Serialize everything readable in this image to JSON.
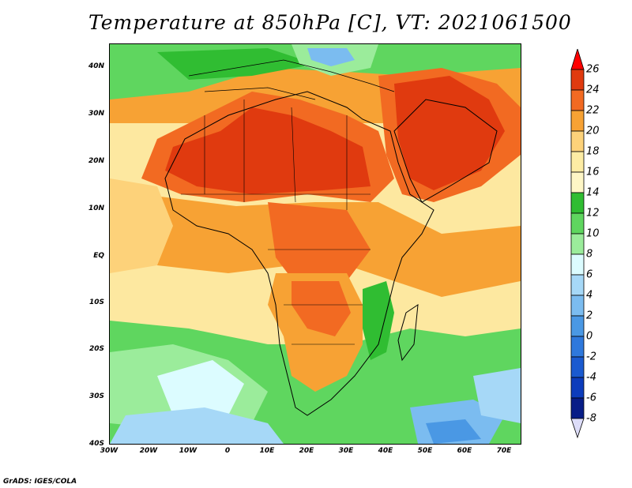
{
  "title": "Temperature at 850hPa [C], VT: 2021061500",
  "credit": "GrADS: IGES/COLA",
  "lat_ticks": [
    "40N",
    "30N",
    "20N",
    "10N",
    "EQ",
    "10S",
    "20S",
    "30S",
    "40S"
  ],
  "lon_ticks": [
    "30W",
    "20W",
    "10W",
    "0",
    "10E",
    "20E",
    "30E",
    "40E",
    "50E",
    "60E",
    "70E"
  ],
  "colorbar": {
    "labels": [
      "26",
      "24",
      "22",
      "20",
      "18",
      "16",
      "14",
      "12",
      "10",
      "8",
      "6",
      "4",
      "2",
      "0",
      "-2",
      "-4",
      "-6",
      "-8"
    ],
    "colors": [
      "#ff0000",
      "#e03a0f",
      "#f26a22",
      "#f7a234",
      "#fdd27a",
      "#fdeca4",
      "#fef6c6",
      "#30bd32",
      "#5fd65f",
      "#9bec9b",
      "#dcfcff",
      "#a6d8f7",
      "#7bbcf0",
      "#4a98e4",
      "#2e78dc",
      "#1a5ad0",
      "#0c3cbc",
      "#081d87",
      "#dcdcf8"
    ]
  }
}
